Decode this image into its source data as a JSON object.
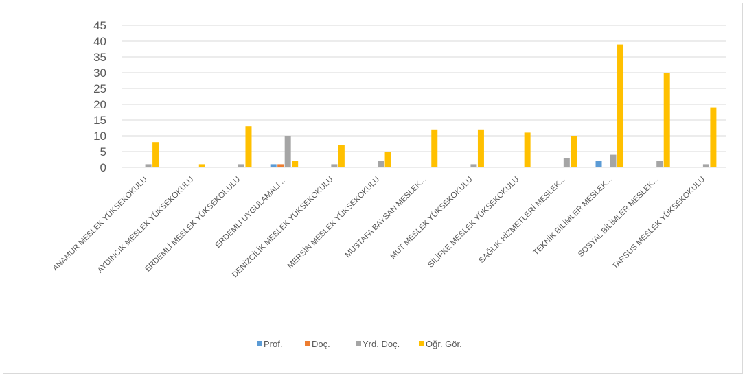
{
  "chart_data": {
    "type": "bar",
    "title": "",
    "xlabel": "",
    "ylabel": "",
    "ylim": [
      0,
      45
    ],
    "yticks": [
      0,
      5,
      10,
      15,
      20,
      25,
      30,
      35,
      40,
      45
    ],
    "grid": true,
    "legend_position": "bottom",
    "categories": [
      "ANAMUR MESLEK YÜKSEKOKULU",
      "AYDINCIK MESLEK YÜKSEKOKULU",
      "ERDEMLİ MESLEK YÜKSEKOKULU",
      "ERDEMLİ UYGULAMALI ...",
      "DENİZCİLİK MESLEK YÜKSEKOKULU",
      "MERSİN MESLEK YÜKSEKOKULU",
      "MUSTAFA BAYSAN MESLEK...",
      "MUT MESLEK YÜKSEKOKULU",
      "SİLİFKE MESLEK YÜKSEKOKULU",
      "SAĞLIK HİZMETLERİ MESLEK...",
      "TEKNİK BİLİMLER MESLEK...",
      "SOSYAL BİLİMLER MESLEK...",
      "TARSUS MESLEK YÜKSEKOKULU"
    ],
    "series": [
      {
        "name": "Prof.",
        "color": "#5b9bd5",
        "values": [
          0,
          0,
          0,
          1,
          0,
          0,
          0,
          0,
          0,
          0,
          2,
          0,
          0
        ]
      },
      {
        "name": "Doç.",
        "color": "#ed7d31",
        "values": [
          0,
          0,
          0,
          1,
          0,
          0,
          0,
          0,
          0,
          0,
          0,
          0,
          0
        ]
      },
      {
        "name": "Yrd. Doç.",
        "color": "#a5a5a5",
        "values": [
          1,
          0,
          1,
          10,
          1,
          2,
          0,
          1,
          0,
          3,
          4,
          2,
          1
        ]
      },
      {
        "name": "Öğr. Gör.",
        "color": "#ffc000",
        "values": [
          8,
          1,
          13,
          2,
          7,
          5,
          12,
          12,
          11,
          10,
          39,
          30,
          19
        ]
      }
    ]
  }
}
